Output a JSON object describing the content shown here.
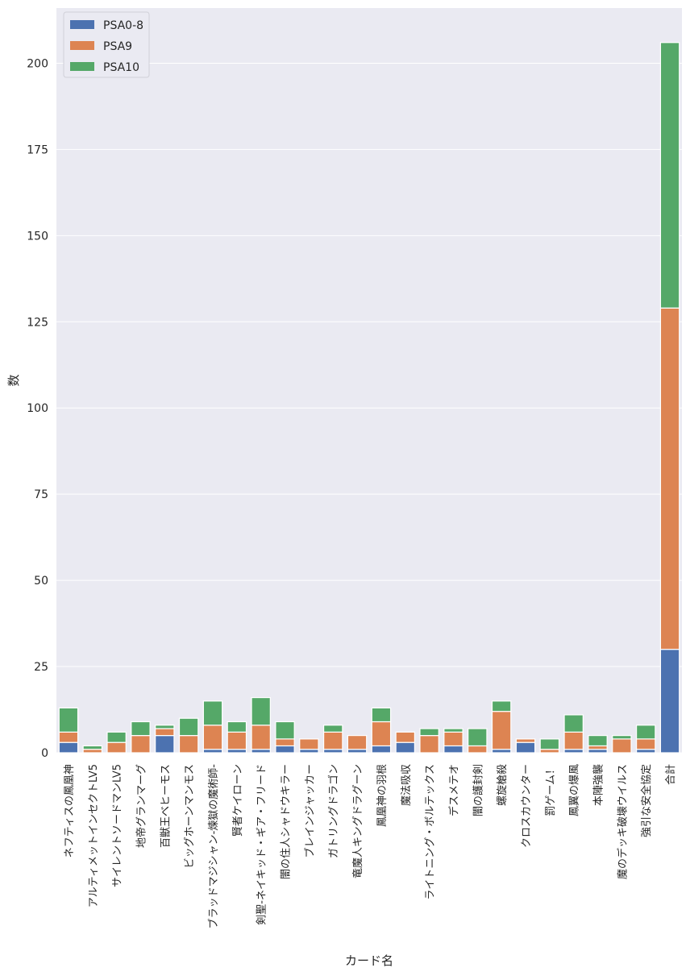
{
  "chart_data": {
    "type": "bar",
    "stacked": true,
    "xlabel": "カード名",
    "ylabel": "数",
    "ylim": [
      0,
      216
    ],
    "yticks": [
      0,
      25,
      50,
      75,
      100,
      125,
      150,
      175,
      200
    ],
    "grid": true,
    "legend_position": "top-left",
    "categories": [
      "ネフティスの鳳凰神",
      "アルティメットインセクトLV5",
      "サイレントソードマンLV5",
      "地帝グランマーグ",
      "百獣王ベヒーモス",
      "ビッグホーンマンモス",
      "ブラッドマジシャン-煉獄の魔術師-",
      "賢者ケイローン",
      "剣聖-ネイキッド・ギア・フリード",
      "闇の住人シャドウキラー",
      "ブレインジャッカー",
      "ガトリングドラゴン",
      "竜魔人キングドラグーン",
      "鳳凰神の羽根",
      "魔法吸収",
      "ライトニング・ボルテックス",
      "デスメテオ",
      "闇の護封剣",
      "螺旋槍殺",
      "クロスカウンター",
      "罰ゲーム！",
      "鳳翼の爆風",
      "本陣強襲",
      "魔のデッキ破壊ウイルス",
      "強引な安全協定",
      "合計"
    ],
    "series": [
      {
        "name": "PSA0-8",
        "color": "#4c72b0",
        "values": [
          3,
          0,
          0,
          0,
          5,
          0,
          1,
          1,
          1,
          2,
          1,
          1,
          1,
          2,
          3,
          0,
          2,
          0,
          1,
          3,
          0,
          1,
          1,
          0,
          1,
          30
        ]
      },
      {
        "name": "PSA9",
        "color": "#dd8452",
        "values": [
          3,
          1,
          3,
          5,
          2,
          5,
          7,
          5,
          7,
          2,
          3,
          5,
          4,
          7,
          3,
          5,
          4,
          2,
          11,
          1,
          1,
          5,
          1,
          4,
          3,
          99
        ]
      },
      {
        "name": "PSA10",
        "color": "#55a868",
        "values": [
          7,
          1,
          3,
          4,
          1,
          5,
          7,
          3,
          8,
          5,
          0,
          2,
          0,
          4,
          0,
          2,
          1,
          5,
          3,
          0,
          3,
          5,
          3,
          1,
          4,
          77
        ]
      }
    ]
  }
}
